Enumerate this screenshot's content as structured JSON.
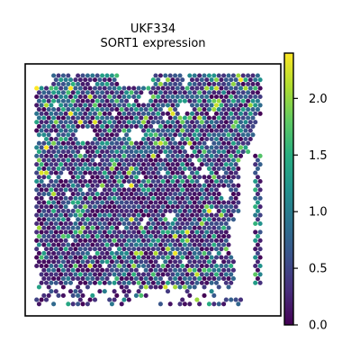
{
  "chart_data": {
    "type": "scatter",
    "title": "UKF334",
    "subtitle": "SORT1 expression",
    "xlabel": "",
    "ylabel": "",
    "grid": false,
    "legend": "colorbar-right",
    "colormap": "viridis",
    "colorbar": {
      "min": 0.0,
      "max": 2.4,
      "ticks": [
        0.0,
        0.5,
        1.0,
        1.5,
        2.0
      ],
      "tick_labels": [
        "0.0",
        "0.5",
        "1.0",
        "1.5",
        "2.0"
      ]
    },
    "spot_value_distribution": "mostly 0.0–0.7 with scattered spots at 1.0–2.3",
    "colors": {
      "low": "#440154",
      "mid": "#21918c",
      "high": "#fde725",
      "frame": "#000000"
    }
  }
}
